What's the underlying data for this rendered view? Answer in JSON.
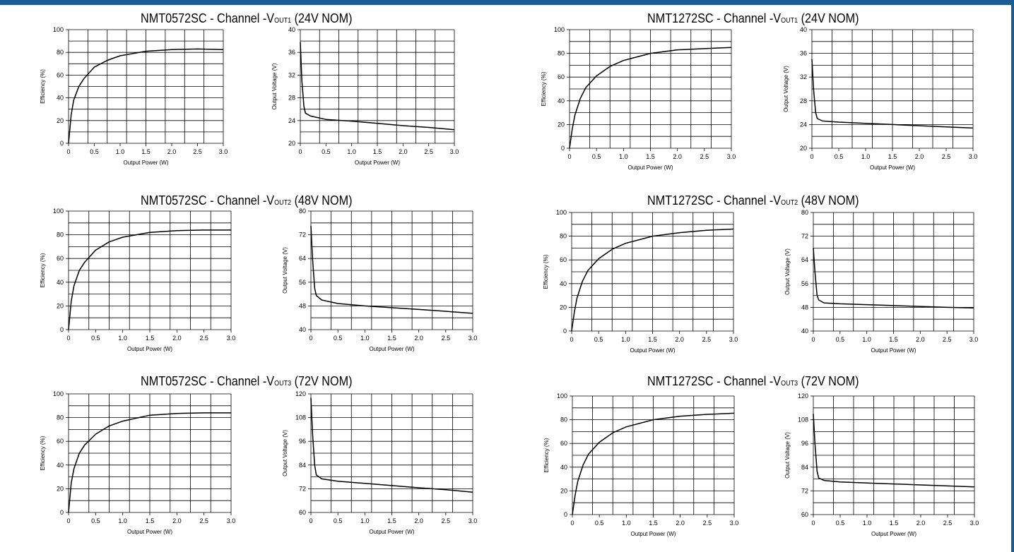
{
  "colors": {
    "accent": "#1c5b94",
    "curve": "#000000",
    "grid": "#000000"
  },
  "sections": [
    {
      "prefix": "NMT0572SC - Channel -V",
      "sub": "OUT1",
      "suffix": " (24V NOM)"
    },
    {
      "prefix": "NMT1272SC - Channel -V",
      "sub": "OUT1",
      "suffix": " (24V NOM)"
    },
    {
      "prefix": "NMT0572SC - Channel -V",
      "sub": "OUT2",
      "suffix": " (48V NOM)"
    },
    {
      "prefix": "NMT1272SC - Channel -V",
      "sub": "OUT2",
      "suffix": " (48V NOM)"
    },
    {
      "prefix": "NMT0572SC - Channel -V",
      "sub": "OUT3",
      "suffix": " (72V NOM)"
    },
    {
      "prefix": "NMT1272SC - Channel -V",
      "sub": "OUT3",
      "suffix": " (72V NOM)"
    }
  ],
  "chart_data": [
    {
      "type": "line",
      "xlabel": "Output Power (W)",
      "ylabel": "Efficiency (%)",
      "xlim": [
        0,
        3.0
      ],
      "ylim": [
        0,
        100
      ],
      "xticks": [
        "0",
        "0.5",
        "1.0",
        "1.5",
        "2.0",
        "2.5",
        "3.0"
      ],
      "yticks": [
        "0",
        "20",
        "40",
        "60",
        "80",
        "100"
      ],
      "grid": true,
      "x": [
        0,
        0.05,
        0.1,
        0.2,
        0.3,
        0.5,
        0.75,
        1.0,
        1.5,
        2.0,
        2.5,
        3.0
      ],
      "y": [
        0,
        25,
        38,
        50,
        57,
        67,
        73,
        77,
        81,
        82.5,
        83,
        82.5
      ]
    },
    {
      "type": "line",
      "xlabel": "Output Power (W)",
      "ylabel": "Output Voltage (V)",
      "xlim": [
        0,
        3.0
      ],
      "ylim": [
        20,
        40
      ],
      "xticks": [
        "0",
        "0.5",
        "1.0",
        "1.5",
        "2.0",
        "2.5",
        "3.0"
      ],
      "yticks": [
        "20",
        "24",
        "28",
        "32",
        "36",
        "40"
      ],
      "grid": true,
      "x": [
        0,
        0.03,
        0.07,
        0.1,
        0.2,
        0.5,
        1.0,
        1.5,
        2.0,
        2.5,
        3.0
      ],
      "y": [
        37.8,
        31,
        26.5,
        25.3,
        24.8,
        24.2,
        23.9,
        23.5,
        23.1,
        22.8,
        22.4
      ]
    },
    {
      "type": "line",
      "xlabel": "Output Power (W)",
      "ylabel": "Efficiency (%)",
      "xlim": [
        0,
        3.0
      ],
      "ylim": [
        0,
        100
      ],
      "xticks": [
        "0",
        "0.5",
        "1.0",
        "1.5",
        "2.0",
        "2.5",
        "3.0"
      ],
      "yticks": [
        "0",
        "20",
        "40",
        "60",
        "80",
        "100"
      ],
      "grid": true,
      "x": [
        0,
        0.05,
        0.1,
        0.2,
        0.3,
        0.5,
        0.75,
        1.0,
        1.5,
        2.0,
        2.5,
        3.0
      ],
      "y": [
        0,
        16,
        28,
        42,
        51,
        61,
        69,
        74,
        80,
        83,
        84,
        85
      ]
    },
    {
      "type": "line",
      "xlabel": "Output Power (W)",
      "ylabel": "Output Voltage (V)",
      "xlim": [
        0,
        3.0
      ],
      "ylim": [
        20,
        40
      ],
      "xticks": [
        "0",
        "0.5",
        "1.0",
        "1.5",
        "2.0",
        "2.5",
        "3.0"
      ],
      "yticks": [
        "20",
        "24",
        "28",
        "32",
        "36",
        "40"
      ],
      "grid": true,
      "x": [
        0,
        0.03,
        0.07,
        0.1,
        0.2,
        0.5,
        1.0,
        1.5,
        2.0,
        2.5,
        3.0
      ],
      "y": [
        35,
        30,
        26,
        25,
        24.6,
        24.4,
        24.2,
        24,
        23.8,
        23.6,
        23.4
      ]
    },
    {
      "type": "line",
      "xlabel": "Output Power (W)",
      "ylabel": "Efficiency (%)",
      "xlim": [
        0,
        3.0
      ],
      "ylim": [
        0,
        100
      ],
      "xticks": [
        "0",
        "0.5",
        "1.0",
        "1.5",
        "2.0",
        "2.5",
        "3.0"
      ],
      "yticks": [
        "0",
        "20",
        "40",
        "60",
        "80",
        "100"
      ],
      "grid": true,
      "x": [
        0,
        0.05,
        0.1,
        0.2,
        0.3,
        0.5,
        0.75,
        1.0,
        1.5,
        2.0,
        2.5,
        3.0
      ],
      "y": [
        0,
        24,
        37,
        50,
        57,
        67,
        74,
        78,
        82,
        83.5,
        84,
        84
      ]
    },
    {
      "type": "line",
      "xlabel": "Output Power (W)",
      "ylabel": "Output Voltage (V)",
      "xlim": [
        0,
        3.0
      ],
      "ylim": [
        40,
        80
      ],
      "xticks": [
        "0",
        "0.5",
        "1.0",
        "1.5",
        "2.0",
        "2.5",
        "3.0"
      ],
      "yticks": [
        "40",
        "48",
        "56",
        "64",
        "72",
        "80"
      ],
      "grid": true,
      "x": [
        0,
        0.03,
        0.07,
        0.1,
        0.2,
        0.5,
        1.0,
        1.5,
        2.0,
        2.5,
        3.0
      ],
      "y": [
        75,
        64,
        54,
        51.5,
        50,
        48.8,
        48,
        47.4,
        46.8,
        46.2,
        45.5
      ]
    },
    {
      "type": "line",
      "xlabel": "Output Power (W)",
      "ylabel": "Efficiency (%)",
      "xlim": [
        0,
        3.0
      ],
      "ylim": [
        0,
        100
      ],
      "xticks": [
        "0",
        "0.5",
        "1.0",
        "1.5",
        "2.0",
        "2.5",
        "3.0"
      ],
      "yticks": [
        "0",
        "20",
        "40",
        "60",
        "80",
        "100"
      ],
      "grid": true,
      "x": [
        0,
        0.05,
        0.1,
        0.2,
        0.3,
        0.5,
        0.75,
        1.0,
        1.5,
        2.0,
        2.5,
        3.0
      ],
      "y": [
        0,
        16,
        28,
        42,
        51,
        61,
        69,
        74,
        80,
        83,
        85,
        86
      ]
    },
    {
      "type": "line",
      "xlabel": "Output Power (W)",
      "ylabel": "Output Voltage (V)",
      "xlim": [
        0,
        3.0
      ],
      "ylim": [
        40,
        80
      ],
      "xticks": [
        "0",
        "0.5",
        "1.0",
        "1.5",
        "2.0",
        "2.5",
        "3.0"
      ],
      "yticks": [
        "40",
        "48",
        "56",
        "64",
        "72",
        "80"
      ],
      "grid": true,
      "x": [
        0,
        0.03,
        0.07,
        0.1,
        0.2,
        0.5,
        1.0,
        1.5,
        2.0,
        2.5,
        3.0
      ],
      "y": [
        68,
        60,
        52,
        50.5,
        49.5,
        49.2,
        48.9,
        48.6,
        48.3,
        48,
        47.8
      ]
    },
    {
      "type": "line",
      "xlabel": "Output Power (W)",
      "ylabel": "Efficiency (%)",
      "xlim": [
        0,
        3.0
      ],
      "ylim": [
        0,
        100
      ],
      "xticks": [
        "0",
        "0.5",
        "1.0",
        "1.5",
        "2.0",
        "2.5",
        "3.0"
      ],
      "yticks": [
        "0",
        "20",
        "40",
        "60",
        "80",
        "100"
      ],
      "grid": true,
      "x": [
        0,
        0.05,
        0.1,
        0.2,
        0.3,
        0.5,
        0.75,
        1.0,
        1.5,
        2.0,
        2.5,
        3.0
      ],
      "y": [
        0,
        25,
        37,
        50,
        57,
        66,
        73,
        77,
        82,
        83.5,
        84,
        84
      ]
    },
    {
      "type": "line",
      "xlabel": "Output Power (W)",
      "ylabel": "Output Voltage (V)",
      "xlim": [
        0,
        3.0
      ],
      "ylim": [
        60,
        120
      ],
      "xticks": [
        "0",
        "0.5",
        "1.0",
        "1.5",
        "2.0",
        "2.5",
        "3.0"
      ],
      "yticks": [
        "60",
        "72",
        "84",
        "96",
        "108",
        "120"
      ],
      "grid": true,
      "x": [
        0,
        0.03,
        0.07,
        0.1,
        0.2,
        0.5,
        1.0,
        1.5,
        2.0,
        2.5,
        3.0
      ],
      "y": [
        118,
        100,
        84,
        79,
        77,
        75.8,
        74.7,
        73.6,
        72.5,
        71.5,
        70.3
      ]
    },
    {
      "type": "line",
      "xlabel": "Output Power (W)",
      "ylabel": "Efficiency (%)",
      "xlim": [
        0,
        3.0
      ],
      "ylim": [
        0,
        100
      ],
      "xticks": [
        "0",
        "0.5",
        "1.0",
        "1.5",
        "2.0",
        "2.5",
        "3.0"
      ],
      "yticks": [
        "0",
        "20",
        "40",
        "60",
        "80",
        "100"
      ],
      "grid": true,
      "x": [
        0,
        0.05,
        0.1,
        0.2,
        0.3,
        0.5,
        0.75,
        1.0,
        1.5,
        2.0,
        2.5,
        3.0
      ],
      "y": [
        0,
        16,
        28,
        42,
        51,
        61,
        69,
        74,
        80,
        83,
        84.5,
        85.5
      ]
    },
    {
      "type": "line",
      "xlabel": "Output Power (W)",
      "ylabel": "Output Voltage (V)",
      "xlim": [
        0,
        3.0
      ],
      "ylim": [
        60,
        120
      ],
      "xticks": [
        "0",
        "0.5",
        "1.0",
        "1.5",
        "2.0",
        "2.5",
        "3.0"
      ],
      "yticks": [
        "60",
        "72",
        "84",
        "96",
        "108",
        "120"
      ],
      "grid": true,
      "x": [
        0,
        0.03,
        0.07,
        0.1,
        0.2,
        0.5,
        1.0,
        1.5,
        2.0,
        2.5,
        3.0
      ],
      "y": [
        111,
        96,
        82,
        78.5,
        77.3,
        76.5,
        76,
        75.5,
        75,
        74.5,
        74
      ]
    }
  ]
}
